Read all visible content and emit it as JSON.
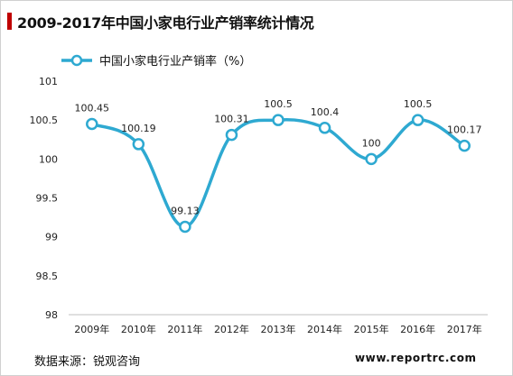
{
  "title": "2009-2017年中国小家电行业产销率统计情况",
  "source": "数据来源：锐观咨询",
  "website": "www.reportrc.com",
  "colors": {
    "accent_bar": "#c00000",
    "series_line": "#2ea9d1",
    "axis_text": "#222222",
    "gridline": "#e3e3e3"
  },
  "chart_data": {
    "type": "line",
    "title": "2009-2017年中国小家电行业产销率统计情况",
    "xlabel": "",
    "ylabel": "",
    "categories": [
      "2009年",
      "2010年",
      "2011年",
      "2012年",
      "2013年",
      "2014年",
      "2015年",
      "2016年",
      "2017年"
    ],
    "series": [
      {
        "name": "中国小家电行业产销率（%）",
        "values": [
          100.45,
          100.19,
          99.13,
          100.31,
          100.5,
          100.4,
          100,
          100.5,
          100.17
        ],
        "labels": [
          "100.45",
          "100.19",
          "99.13",
          "100.31",
          "100.5",
          "100.4",
          "100",
          "100.5",
          "100.17"
        ]
      }
    ],
    "ylim": [
      98,
      101
    ],
    "yticks": [
      98,
      98.5,
      99,
      99.5,
      100,
      100.5,
      101
    ],
    "ytick_labels": [
      "98",
      "98.5",
      "99",
      "99.5",
      "100",
      "100.5",
      "101"
    ],
    "grid": "none",
    "smooth": true,
    "markers": "open-circle",
    "legend_position": "top-left"
  }
}
